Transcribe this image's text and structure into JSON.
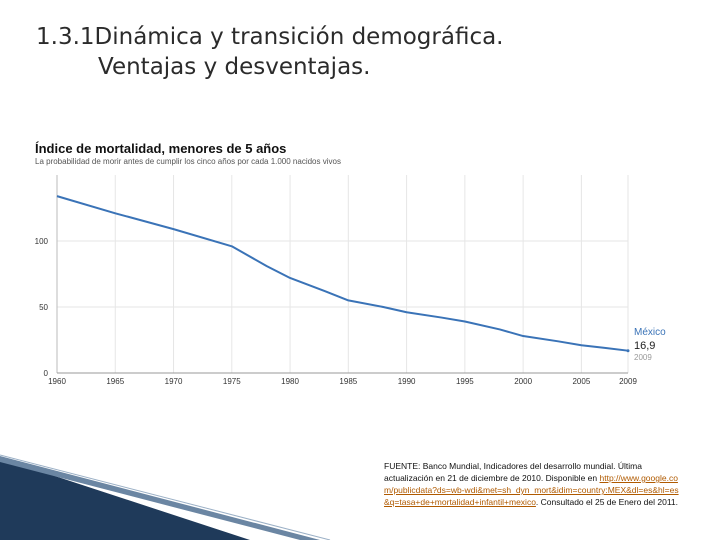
{
  "slide": {
    "title_line1": "1.3.1Dinámica y transición demográfica.",
    "title_line2": "Ventajas y desventajas."
  },
  "chart_data": {
    "type": "line",
    "title": "Índice de mortalidad, menores de 5 años",
    "subtitle": "La probabilidad de morir antes de cumplir los cinco años por cada 1.000 nacidos vivos",
    "x_ticks": [
      "1960",
      "1965",
      "1970",
      "1975",
      "1980",
      "1985",
      "1990",
      "1995",
      "2000",
      "2005",
      "2009"
    ],
    "y_ticks": [
      "0",
      "50",
      "100"
    ],
    "xlim": [
      1960,
      2009
    ],
    "ylim": [
      0,
      150
    ],
    "series": [
      {
        "name": "México",
        "x": [
          1960,
          1965,
          1970,
          1975,
          1978,
          1980,
          1983,
          1985,
          1988,
          1990,
          1993,
          1995,
          1998,
          2000,
          2003,
          2005,
          2007,
          2009
        ],
        "values": [
          134,
          121,
          109,
          96,
          81,
          72,
          62,
          55,
          50,
          46,
          42,
          39,
          33,
          28,
          24,
          21,
          19,
          16.9
        ],
        "color": "#3a73b7",
        "last_value": "16,9",
        "last_year": "2009"
      }
    ]
  },
  "source": {
    "text_before": "FUENTE: Banco Mundial, Indicadores del desarrollo mundial. Última actualización en 21 de diciembre de 2010. Disponible en",
    "link_text": "http://www.google.com/publicdata?ds=wb-wdi&met=sh_dyn_mort&idim=country:MEX&dl=es&hl=es&q=tasa+de+mortalidad+infantil+mexico",
    "text_after": ". Consultado el 25 de Enero del 2011."
  },
  "colors": {
    "accent": "#3a73b7",
    "link": "#b05a00",
    "decor_dark": "#1f3a5a"
  }
}
